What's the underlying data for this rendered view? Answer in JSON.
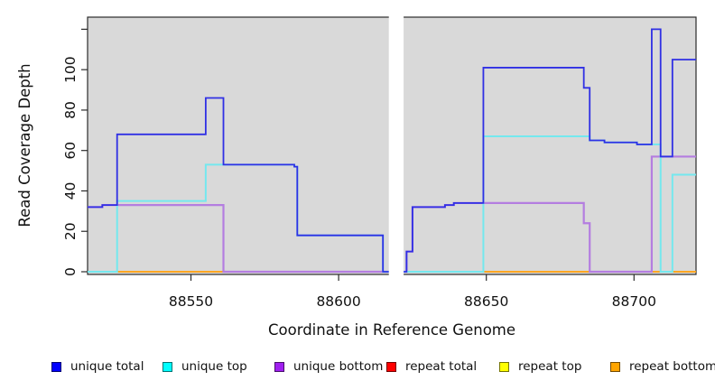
{
  "chart_data": {
    "type": "line",
    "subtype": "step-after",
    "title": "",
    "xlabel": "Coordinate in Reference Genome",
    "ylabel": "Read Coverage Depth",
    "xlim": [
      88515,
      88721
    ],
    "ylim": [
      0,
      126
    ],
    "x_ticks": [
      88550,
      88600,
      88650,
      88700
    ],
    "x_tick_labels": [
      "88550",
      "88600",
      "88650",
      "88700"
    ],
    "y_ticks": [
      0,
      20,
      40,
      60,
      80,
      100,
      120
    ],
    "y_tick_labels": [
      "0",
      "20",
      "40",
      "60",
      "80",
      "100",
      ""
    ],
    "grid": false,
    "panel_background": "#D9D9D9",
    "masked_region": [
      88617,
      88622
    ],
    "series": [
      {
        "name": "repeat total",
        "color": "#DD2222",
        "width": 1.6,
        "points": [
          [
            88515,
            0
          ],
          [
            88721,
            0
          ]
        ]
      },
      {
        "name": "repeat top",
        "color": "#E8E800",
        "width": 1.6,
        "points": [
          [
            88515,
            0
          ],
          [
            88721,
            0
          ]
        ]
      },
      {
        "name": "repeat bottom",
        "color": "#FFA51E",
        "width": 1.8,
        "points": [
          [
            88515,
            0
          ],
          [
            88721,
            0
          ]
        ]
      },
      {
        "name": "unique bottom",
        "color": "#B47DE0",
        "width": 2.2,
        "points": [
          [
            88515,
            32
          ],
          [
            88520,
            33
          ],
          [
            88561,
            0
          ],
          [
            88623,
            10
          ],
          [
            88625,
            32
          ],
          [
            88636,
            33
          ],
          [
            88639,
            34
          ],
          [
            88683,
            24
          ],
          [
            88685,
            0
          ],
          [
            88706,
            57
          ],
          [
            88721,
            57
          ]
        ]
      },
      {
        "name": "unique top",
        "color": "#74E8EE",
        "width": 2.0,
        "points": [
          [
            88515,
            0
          ],
          [
            88525,
            35
          ],
          [
            88555,
            53
          ],
          [
            88585,
            52
          ],
          [
            88586,
            18
          ],
          [
            88615,
            0
          ],
          [
            88649,
            67
          ],
          [
            88685,
            65
          ],
          [
            88690,
            64
          ],
          [
            88701,
            63
          ],
          [
            88709,
            0
          ],
          [
            88713,
            48
          ],
          [
            88721,
            48
          ]
        ]
      },
      {
        "name": "unique total",
        "color": "#3030E4",
        "width": 1.8,
        "points": [
          [
            88515,
            32
          ],
          [
            88520,
            33
          ],
          [
            88525,
            68
          ],
          [
            88555,
            86
          ],
          [
            88561,
            53
          ],
          [
            88585,
            52
          ],
          [
            88586,
            18
          ],
          [
            88615,
            0
          ],
          [
            88623,
            10
          ],
          [
            88625,
            32
          ],
          [
            88636,
            33
          ],
          [
            88639,
            34
          ],
          [
            88649,
            101
          ],
          [
            88683,
            91
          ],
          [
            88685,
            65
          ],
          [
            88690,
            64
          ],
          [
            88701,
            63
          ],
          [
            88706,
            120
          ],
          [
            88709,
            57
          ],
          [
            88713,
            105
          ],
          [
            88721,
            105
          ]
        ]
      }
    ],
    "legend": [
      {
        "label": "unique total",
        "color": "#0000FF"
      },
      {
        "label": "unique top",
        "color": "#00FFFF"
      },
      {
        "label": "unique bottom",
        "color": "#A020F0"
      },
      {
        "label": "repeat total",
        "color": "#FF0000"
      },
      {
        "label": "repeat top",
        "color": "#FFFF00"
      },
      {
        "label": "repeat bottom",
        "color": "#FFA500"
      }
    ],
    "legend_position": "bottom"
  }
}
